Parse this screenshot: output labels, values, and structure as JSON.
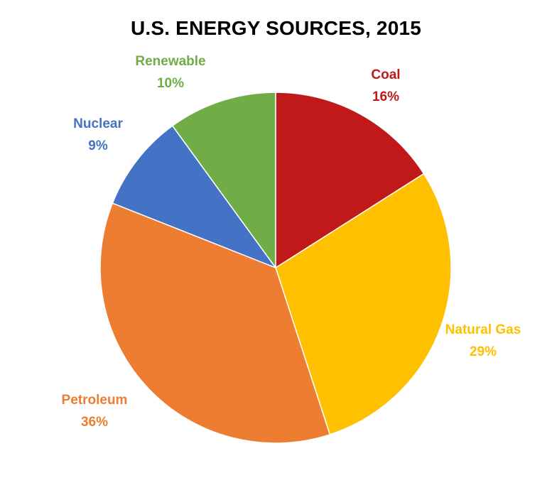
{
  "chart_data": {
    "type": "pie",
    "title": "U.S. ENERGY SOURCES, 2015",
    "slices": [
      {
        "label": "Coal",
        "value": 16,
        "value_label": "16%",
        "color": "#C0191A"
      },
      {
        "label": "Natural Gas",
        "value": 29,
        "value_label": "29%",
        "color": "#FFC000"
      },
      {
        "label": "Petroleum",
        "value": 36,
        "value_label": "36%",
        "color": "#ED7D31"
      },
      {
        "label": "Nuclear",
        "value": 9,
        "value_label": "9%",
        "color": "#4472C4"
      },
      {
        "label": "Renewable",
        "value": 10,
        "value_label": "10%",
        "color": "#70AD47"
      }
    ],
    "legend": "none"
  }
}
